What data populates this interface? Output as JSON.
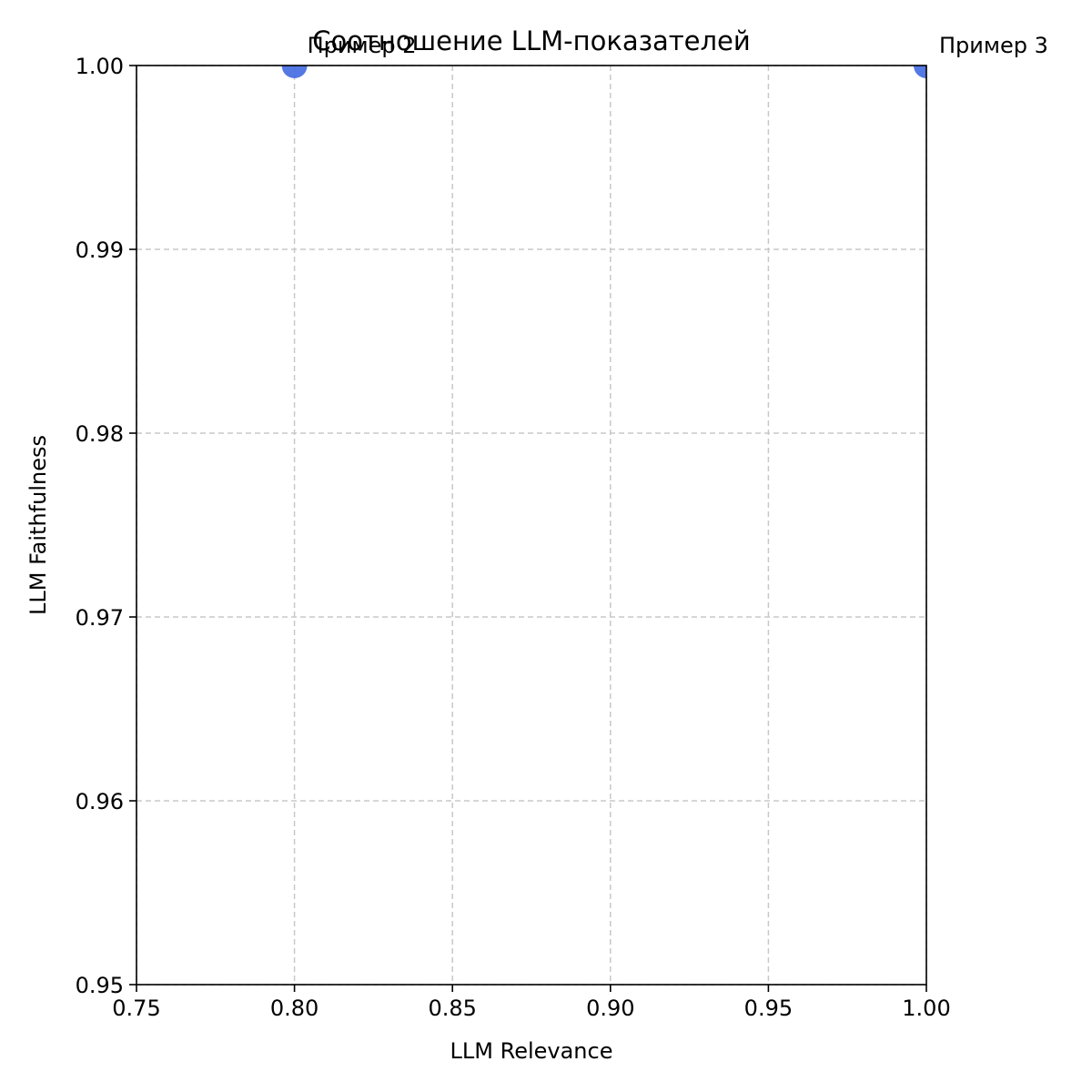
{
  "chart_data": {
    "type": "scatter",
    "title": "Соотношение LLM-показателей",
    "xlabel": "LLM Relevance",
    "ylabel": "LLM Faithfulness",
    "xlim": [
      0.75,
      1.0
    ],
    "ylim": [
      0.95,
      1.0
    ],
    "x_ticks": [
      "0.75",
      "0.80",
      "0.85",
      "0.90",
      "0.95",
      "1.00"
    ],
    "y_ticks": [
      "0.95",
      "0.96",
      "0.97",
      "0.98",
      "0.99",
      "1.00"
    ],
    "grid": true,
    "point_color": "#4169e1",
    "points": [
      {
        "x": 0.8,
        "y": 1.0,
        "label": "Пример 2"
      },
      {
        "x": 1.0,
        "y": 1.0,
        "label": "Пример 3"
      }
    ]
  }
}
